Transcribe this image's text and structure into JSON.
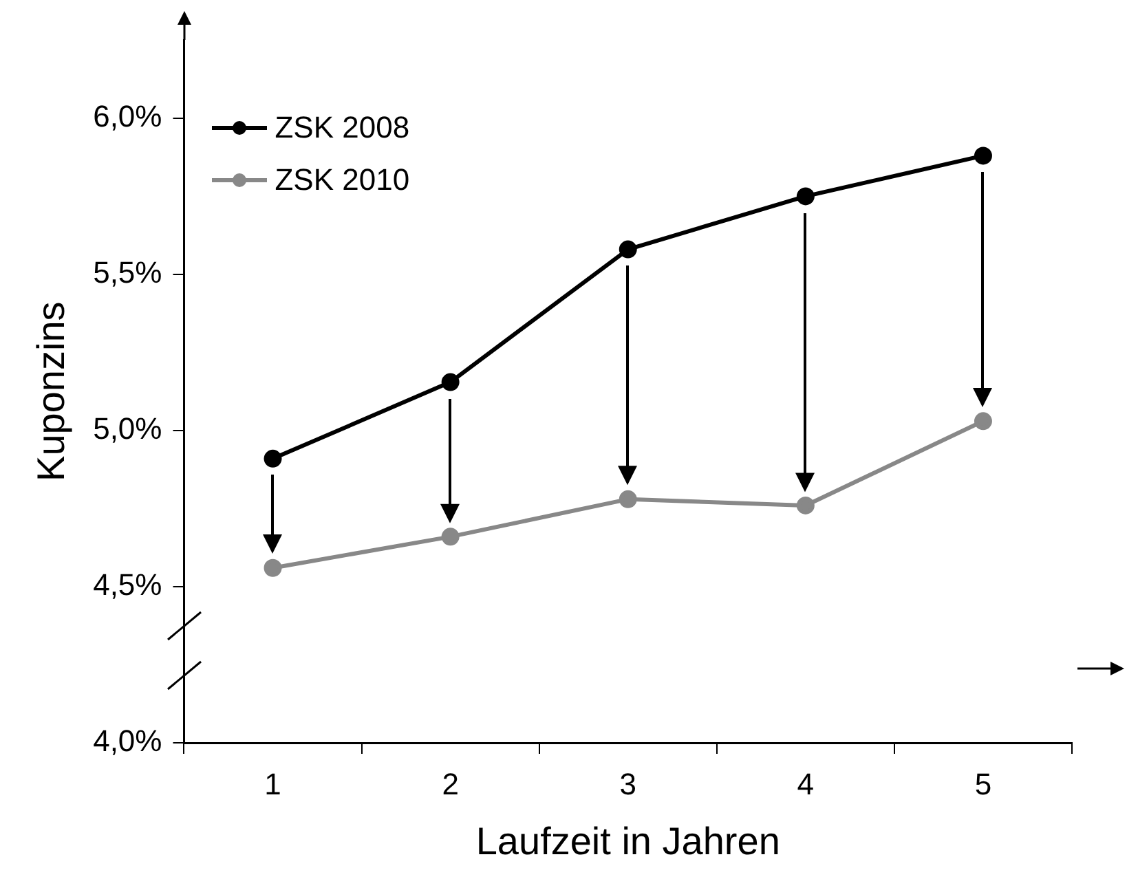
{
  "chart_data": {
    "type": "line",
    "xlabel": "Laufzeit in Jahren",
    "ylabel": "Kuponzins",
    "categories": [
      "1",
      "2",
      "3",
      "4",
      "5"
    ],
    "series": [
      {
        "name": "ZSK 2008",
        "color": "#000000",
        "values": [
          4.91,
          5.155,
          5.58,
          5.75,
          5.88
        ]
      },
      {
        "name": "ZSK 2010",
        "color": "#888888",
        "values": [
          4.56,
          4.66,
          4.78,
          4.76,
          5.03
        ]
      }
    ],
    "ylim": [
      4.0,
      6.25
    ],
    "yticks": [
      {
        "value": 4.0,
        "label": "4,0%"
      },
      {
        "value": 4.5,
        "label": "4,5%"
      },
      {
        "value": 5.0,
        "label": "5,0%"
      },
      {
        "value": 5.5,
        "label": "5,5%"
      },
      {
        "value": 6.0,
        "label": "6,0%"
      }
    ],
    "grid": false,
    "legend": "top left",
    "marker": "circle",
    "line_style": "solid"
  }
}
